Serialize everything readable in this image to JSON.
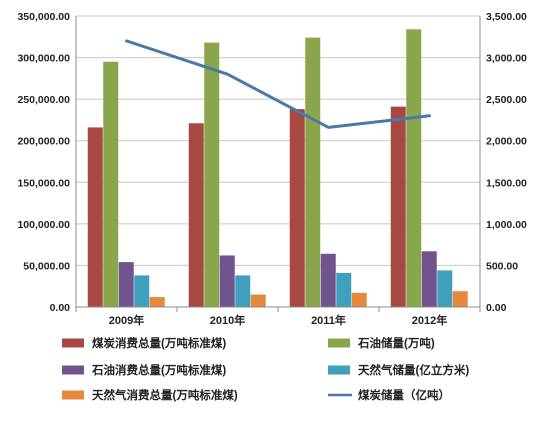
{
  "chart_data": {
    "type": "bar",
    "categories": [
      "2009年",
      "2010年",
      "2011年",
      "2012年"
    ],
    "y_left": {
      "lim": [
        0,
        350000
      ],
      "ticks": [
        "0.00",
        "50,000.00",
        "100,000.00",
        "150,000.00",
        "200,000.00",
        "250,000.00",
        "300,000.00",
        "350,000.00"
      ]
    },
    "y_right": {
      "lim": [
        0,
        3500
      ],
      "ticks": [
        "0.00",
        "500.00",
        "1,000.00",
        "1,500.00",
        "2,000.00",
        "2,500.00",
        "3,000.00",
        "3,500.00"
      ]
    },
    "series": [
      {
        "name": "煤炭消费总量(万吨标准煤)",
        "color": "#a84842",
        "axis": "left",
        "kind": "bar",
        "values": [
          216000,
          221000,
          238000,
          241000
        ]
      },
      {
        "name": "石油储量(万吨)",
        "color": "#8aa64c",
        "axis": "left",
        "kind": "bar",
        "values": [
          295000,
          318000,
          324000,
          334000
        ]
      },
      {
        "name": "石油消费总量(万吨标准煤)",
        "color": "#70548e",
        "axis": "left",
        "kind": "bar",
        "values": [
          54000,
          62000,
          64000,
          67000
        ]
      },
      {
        "name": "天然气储量(亿立方米)",
        "color": "#3f9fbd",
        "axis": "left",
        "kind": "bar",
        "values": [
          38000,
          38000,
          41000,
          44000
        ]
      },
      {
        "name": "天然气消费总量(万吨标准煤)",
        "color": "#e58a3c",
        "axis": "left",
        "kind": "bar",
        "values": [
          12000,
          15000,
          17000,
          19000
        ]
      },
      {
        "name": "煤炭储量（亿吨）",
        "color": "#4a78a8",
        "axis": "right",
        "kind": "line",
        "values": [
          3200,
          2800,
          2160,
          2300
        ]
      }
    ],
    "grid": "horizontal",
    "legend_position": "bottom"
  }
}
